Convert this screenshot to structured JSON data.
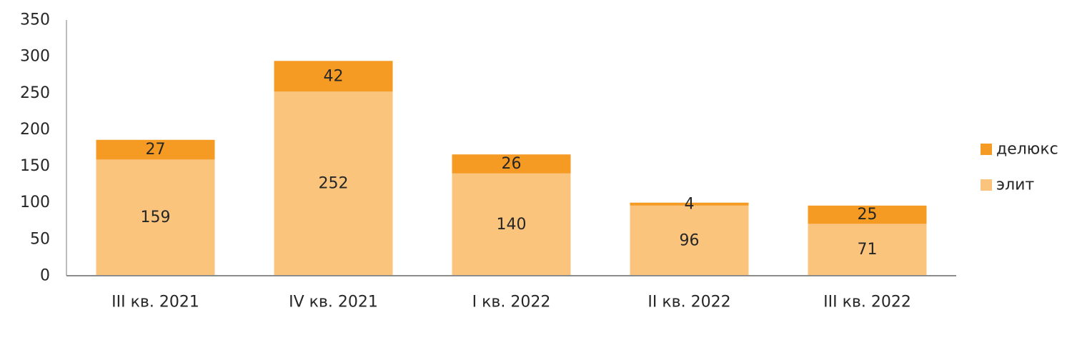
{
  "chart_data": {
    "type": "bar",
    "stacked": true,
    "categories": [
      "III кв. 2021",
      "IV кв. 2021",
      "I кв. 2022",
      "II кв. 2022",
      "III кв. 2022"
    ],
    "series": [
      {
        "name": "элит",
        "values": [
          159,
          252,
          140,
          96,
          71
        ],
        "color": "#FAC47D"
      },
      {
        "name": "делюкс",
        "values": [
          27,
          42,
          26,
          4,
          25
        ],
        "color": "#F59A23"
      }
    ],
    "yticks": [
      "0",
      "50",
      "100",
      "150",
      "200",
      "250",
      "300",
      "350"
    ],
    "ylim": [
      0,
      350
    ],
    "grid": false,
    "legend_position": "right"
  }
}
